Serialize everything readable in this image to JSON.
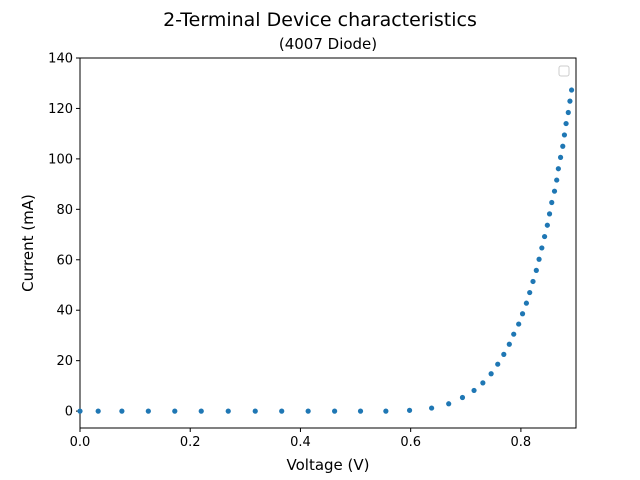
{
  "chart_data": {
    "type": "scatter",
    "title": "2-Terminal Device characteristics",
    "subtitle": "(4007 Diode)",
    "xlabel": "Voltage (V)",
    "ylabel": "Current (mA)",
    "xlim": [
      0.0,
      0.9
    ],
    "ylim": [
      -6.7,
      140
    ],
    "x_ticks": [
      0.0,
      0.2,
      0.4,
      0.6,
      0.8
    ],
    "x_tick_labels": [
      "0.0",
      "0.2",
      "0.4",
      "0.6",
      "0.8"
    ],
    "y_ticks": [
      0,
      20,
      40,
      60,
      80,
      100,
      120,
      140
    ],
    "y_tick_labels": [
      "0",
      "20",
      "40",
      "60",
      "80",
      "100",
      "120",
      "140"
    ],
    "grid": false,
    "legend": "upper-right (empty)",
    "marker_color": "#1f77b4",
    "series": [
      {
        "x": [
          0.0,
          0.033,
          0.076,
          0.124,
          0.172,
          0.22,
          0.269,
          0.318,
          0.366,
          0.414,
          0.462,
          0.509,
          0.555,
          0.598,
          0.638,
          0.669,
          0.694,
          0.715,
          0.731,
          0.746,
          0.758,
          0.769,
          0.779,
          0.787,
          0.796,
          0.803,
          0.81,
          0.816,
          0.822,
          0.828,
          0.833,
          0.838,
          0.843,
          0.848,
          0.852,
          0.856,
          0.861,
          0.865,
          0.868,
          0.872,
          0.876,
          0.879,
          0.882,
          0.886,
          0.889,
          0.892
        ],
        "y": [
          0.0,
          0.0,
          0.0,
          0.0,
          0.0,
          0.0,
          0.0,
          0.0,
          0.0,
          0.0,
          0.0,
          0.0,
          0.0,
          0.3,
          1.2,
          2.9,
          5.4,
          8.2,
          11.2,
          14.8,
          18.6,
          22.5,
          26.5,
          30.5,
          34.5,
          38.6,
          42.8,
          47.0,
          51.4,
          55.8,
          60.2,
          64.7,
          69.2,
          73.7,
          78.2,
          82.7,
          87.2,
          91.6,
          96.1,
          100.6,
          105.0,
          109.5,
          114.0,
          118.4,
          122.9,
          127.3
        ]
      }
    ]
  }
}
